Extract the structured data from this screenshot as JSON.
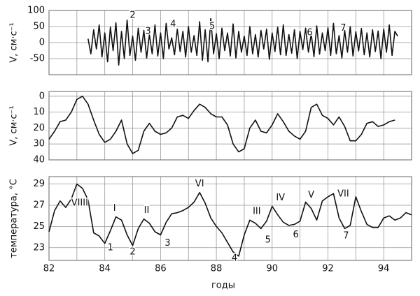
{
  "chart_data": [
    {
      "type": "line",
      "ylabel": "V, см·с⁻¹",
      "color": "#111",
      "xlim": [
        82,
        95
      ],
      "ylim": [
        -100,
        100
      ],
      "yticks": [
        100,
        50,
        0,
        -50
      ],
      "xticks": [
        82,
        84,
        86,
        88,
        90,
        92,
        94
      ],
      "minor_xticks": [
        83,
        85,
        87,
        89,
        91,
        93,
        95
      ],
      "show_xtick_labels": false,
      "grid": true,
      "x": [
        83.4,
        83.5,
        83.6,
        83.7,
        83.8,
        83.9,
        84.0,
        84.1,
        84.2,
        84.3,
        84.4,
        84.5,
        84.6,
        84.7,
        84.8,
        84.9,
        85.0,
        85.1,
        85.2,
        85.3,
        85.4,
        85.5,
        85.6,
        85.7,
        85.8,
        85.9,
        86.0,
        86.1,
        86.2,
        86.3,
        86.4,
        86.5,
        86.6,
        86.7,
        86.8,
        86.9,
        87.0,
        87.1,
        87.2,
        87.3,
        87.4,
        87.5,
        87.6,
        87.7,
        87.8,
        87.9,
        88.0,
        88.1,
        88.2,
        88.3,
        88.4,
        88.5,
        88.6,
        88.7,
        88.8,
        88.9,
        89.0,
        89.1,
        89.2,
        89.3,
        89.4,
        89.5,
        89.6,
        89.7,
        89.8,
        89.9,
        90.0,
        90.1,
        90.2,
        90.3,
        90.4,
        90.5,
        90.6,
        90.7,
        90.8,
        90.9,
        91.0,
        91.1,
        91.2,
        91.3,
        91.4,
        91.5,
        91.6,
        91.7,
        91.8,
        91.9,
        92.0,
        92.1,
        92.2,
        92.3,
        92.4,
        92.5,
        92.6,
        92.7,
        92.8,
        92.9,
        93.0,
        93.1,
        93.2,
        93.3,
        93.4,
        93.5,
        93.6,
        93.7,
        93.8,
        93.9,
        94.0,
        94.1,
        94.2,
        94.3,
        94.4,
        94.5
      ],
      "values": [
        12,
        -35,
        40,
        -20,
        55,
        -45,
        30,
        -60,
        48,
        -25,
        62,
        -70,
        35,
        -50,
        70,
        -40,
        20,
        -55,
        45,
        -30,
        38,
        -48,
        25,
        -35,
        55,
        -42,
        30,
        -50,
        60,
        -20,
        15,
        -38,
        42,
        -28,
        35,
        -45,
        50,
        -30,
        22,
        -40,
        65,
        -55,
        40,
        -60,
        75,
        -35,
        28,
        -50,
        45,
        -25,
        30,
        -42,
        58,
        -48,
        35,
        -30,
        20,
        -40,
        50,
        -35,
        25,
        -45,
        38,
        -20,
        42,
        -52,
        30,
        -28,
        48,
        -38,
        55,
        -40,
        25,
        -33,
        40,
        -50,
        35,
        -22,
        45,
        -30,
        28,
        -44,
        52,
        -36,
        30,
        -25,
        46,
        -40,
        60,
        -35,
        22,
        -48,
        38,
        -30,
        50,
        -42,
        34,
        -26,
        44,
        -38,
        30,
        -45,
        40,
        -28,
        36,
        -50,
        42,
        -30,
        55,
        -40,
        35,
        20
      ],
      "annotations": [
        "2",
        "3",
        "4",
        "5",
        "6",
        "7"
      ]
    },
    {
      "type": "line",
      "ylabel": "V, см·с⁻¹",
      "color": "#111",
      "xlim": [
        82,
        95
      ],
      "ylim": [
        40,
        -3
      ],
      "yticks": [
        0,
        10,
        20,
        30,
        40
      ],
      "xticks": [
        82,
        84,
        86,
        88,
        90,
        92,
        94
      ],
      "minor_xticks": [
        83,
        85,
        87,
        89,
        91,
        93,
        95
      ],
      "show_xtick_labels": false,
      "grid": true,
      "x": [
        82.0,
        82.2,
        82.4,
        82.6,
        82.8,
        83.0,
        83.2,
        83.4,
        83.6,
        83.8,
        84.0,
        84.2,
        84.4,
        84.6,
        84.8,
        85.0,
        85.2,
        85.4,
        85.6,
        85.8,
        86.0,
        86.2,
        86.4,
        86.6,
        86.8,
        87.0,
        87.2,
        87.4,
        87.6,
        87.8,
        88.0,
        88.2,
        88.4,
        88.6,
        88.8,
        89.0,
        89.2,
        89.4,
        89.6,
        89.8,
        90.0,
        90.2,
        90.4,
        90.6,
        90.8,
        91.0,
        91.2,
        91.4,
        91.6,
        91.8,
        92.0,
        92.2,
        92.4,
        92.6,
        92.8,
        93.0,
        93.2,
        93.4,
        93.6,
        93.8,
        94.0,
        94.2,
        94.4
      ],
      "values": [
        27,
        22,
        16,
        15,
        10,
        2,
        0,
        5,
        15,
        24,
        29,
        27,
        22,
        15,
        30,
        36,
        34,
        22,
        17,
        22,
        24,
        23,
        20,
        13,
        12,
        14,
        9,
        5,
        7,
        11,
        13,
        13,
        18,
        30,
        35,
        33,
        20,
        15,
        22,
        23,
        18,
        11,
        16,
        22,
        25,
        27,
        22,
        7,
        5,
        12,
        14,
        18,
        13,
        19,
        28,
        28,
        24,
        17,
        16,
        19,
        18,
        16,
        15
      ]
    },
    {
      "type": "line",
      "ylabel": "температура, °С",
      "xlabel": "годы",
      "color": "#111",
      "xlim": [
        82,
        95
      ],
      "ylim": [
        21.8,
        29.7
      ],
      "yticks": [
        23,
        25,
        27,
        29
      ],
      "xticks": [
        82,
        84,
        86,
        88,
        90,
        92,
        94
      ],
      "minor_xticks": [
        83,
        85,
        87,
        89,
        91,
        93,
        95
      ],
      "show_xtick_labels": true,
      "grid": true,
      "x": [
        82.0,
        82.2,
        82.4,
        82.6,
        82.8,
        83.0,
        83.2,
        83.4,
        83.6,
        83.8,
        84.0,
        84.2,
        84.4,
        84.6,
        84.8,
        85.0,
        85.2,
        85.4,
        85.6,
        85.8,
        86.0,
        86.2,
        86.4,
        86.6,
        86.8,
        87.0,
        87.2,
        87.4,
        87.6,
        87.8,
        88.0,
        88.2,
        88.4,
        88.6,
        88.8,
        89.0,
        89.2,
        89.4,
        89.6,
        89.8,
        90.0,
        90.2,
        90.4,
        90.6,
        90.8,
        91.0,
        91.2,
        91.4,
        91.6,
        91.8,
        92.0,
        92.2,
        92.4,
        92.6,
        92.8,
        93.0,
        93.2,
        93.4,
        93.6,
        93.8,
        94.0,
        94.2,
        94.4,
        94.6,
        94.8,
        95.0
      ],
      "values": [
        24.5,
        26.5,
        27.4,
        26.8,
        27.6,
        29,
        28.6,
        27.5,
        24.4,
        24.1,
        23.4,
        24.6,
        25.9,
        25.6,
        24.2,
        23.2,
        24.8,
        25.7,
        25.3,
        24.5,
        24.2,
        25.4,
        26.2,
        26.3,
        26.5,
        26.8,
        27.3,
        28.2,
        27.2,
        25.8,
        25.0,
        24.4,
        23.5,
        22.6,
        22.2,
        24.2,
        25.6,
        25.3,
        24.8,
        25.5,
        26.9,
        26.1,
        25.4,
        25.1,
        25.2,
        25.5,
        27.3,
        26.7,
        25.6,
        27.4,
        27.8,
        28.1,
        25.8,
        24.8,
        25.1,
        27.8,
        26.4,
        25.2,
        24.9,
        24.9,
        25.8,
        26.0,
        25.6,
        25.8,
        26.3,
        26.1
      ],
      "annotations": [
        "VIIII",
        "I",
        "II",
        "VI",
        "III",
        "IV",
        "V",
        "VII",
        "1",
        "2",
        "3",
        "4",
        "5",
        "6",
        "7"
      ]
    }
  ]
}
